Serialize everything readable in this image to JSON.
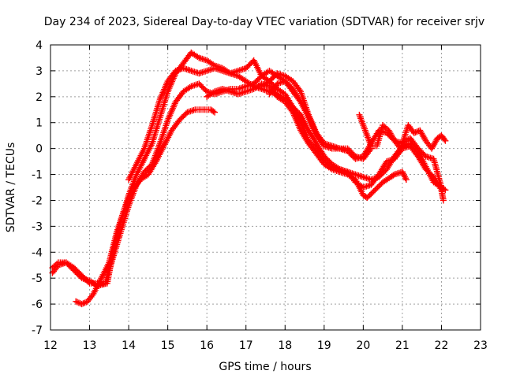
{
  "chart_data": {
    "type": "scatter",
    "title": "Day 234 of 2023, Sidereal Day-to-day VTEC variation (SDTVAR) for receiver srjv",
    "xlabel": "GPS time / hours",
    "ylabel": "SDTVAR / TECUs",
    "xlim": [
      12,
      23
    ],
    "ylim": [
      -7,
      4
    ],
    "xticks": [
      12,
      13,
      14,
      15,
      16,
      17,
      18,
      19,
      20,
      21,
      22,
      23
    ],
    "yticks": [
      -7,
      -6,
      -5,
      -4,
      -3,
      -2,
      -1,
      0,
      1,
      2,
      3,
      4
    ],
    "grid": true,
    "marker": "+",
    "series": [
      {
        "name": "track-a",
        "color": "#ff0000",
        "points": [
          [
            12.05,
            -4.8
          ],
          [
            12.2,
            -4.5
          ],
          [
            12.4,
            -4.4
          ],
          [
            12.6,
            -4.6
          ],
          [
            12.8,
            -4.9
          ],
          [
            13.0,
            -5.2
          ],
          [
            13.2,
            -5.2
          ],
          [
            13.4,
            -5.2
          ],
          [
            13.6,
            -4.2
          ],
          [
            13.8,
            -3.2
          ],
          [
            14.0,
            -2.2
          ],
          [
            14.2,
            -1.4
          ],
          [
            14.4,
            -0.9
          ],
          [
            14.6,
            -0.6
          ],
          [
            14.8,
            0.2
          ],
          [
            15.0,
            1.1
          ],
          [
            15.2,
            1.8
          ],
          [
            15.4,
            2.2
          ],
          [
            15.6,
            2.4
          ],
          [
            15.8,
            2.5
          ],
          [
            16.0,
            2.2
          ],
          [
            16.2,
            2.1
          ],
          [
            16.4,
            2.2
          ],
          [
            16.6,
            2.3
          ],
          [
            16.8,
            2.3
          ],
          [
            17.0,
            2.4
          ],
          [
            17.2,
            2.5
          ],
          [
            17.4,
            2.8
          ],
          [
            17.6,
            3.0
          ],
          [
            17.8,
            2.8
          ],
          [
            18.0,
            2.6
          ],
          [
            18.2,
            2.2
          ],
          [
            18.4,
            1.8
          ],
          [
            18.6,
            1.2
          ],
          [
            18.8,
            0.6
          ],
          [
            19.0,
            0.2
          ],
          [
            19.2,
            0.1
          ],
          [
            19.4,
            0.0
          ],
          [
            19.6,
            0.0
          ],
          [
            19.8,
            -0.3
          ],
          [
            20.0,
            -0.4
          ],
          [
            20.2,
            0.0
          ]
        ]
      },
      {
        "name": "track-b",
        "color": "#ff0000",
        "points": [
          [
            12.05,
            -4.6
          ],
          [
            12.2,
            -4.4
          ],
          [
            12.4,
            -4.4
          ],
          [
            12.6,
            -4.7
          ],
          [
            12.8,
            -5.0
          ],
          [
            13.0,
            -5.1
          ],
          [
            13.2,
            -5.3
          ],
          [
            13.45,
            -5.2
          ],
          [
            13.6,
            -4.0
          ],
          [
            13.8,
            -2.8
          ],
          [
            14.0,
            -1.8
          ],
          [
            14.2,
            -1.0
          ],
          [
            14.4,
            -0.4
          ],
          [
            14.6,
            0.2
          ],
          [
            14.8,
            1.2
          ],
          [
            15.0,
            2.2
          ],
          [
            15.2,
            2.9
          ],
          [
            15.4,
            3.3
          ],
          [
            15.6,
            3.7
          ],
          [
            15.8,
            3.5
          ],
          [
            16.0,
            3.4
          ],
          [
            16.2,
            3.2
          ],
          [
            16.4,
            3.1
          ],
          [
            16.6,
            2.9
          ],
          [
            16.8,
            2.8
          ],
          [
            17.0,
            2.6
          ],
          [
            17.2,
            2.4
          ],
          [
            17.4,
            2.3
          ],
          [
            17.6,
            2.2
          ],
          [
            17.8,
            2.1
          ],
          [
            18.0,
            1.9
          ],
          [
            18.2,
            1.6
          ],
          [
            18.4,
            1.3
          ],
          [
            18.6,
            0.7
          ],
          [
            18.8,
            0.2
          ],
          [
            19.0,
            -0.3
          ],
          [
            19.2,
            -0.6
          ],
          [
            19.4,
            -0.8
          ],
          [
            19.6,
            -0.9
          ],
          [
            19.8,
            -1.0
          ],
          [
            20.0,
            -1.1
          ],
          [
            20.2,
            -1.2
          ],
          [
            20.4,
            -1.1
          ],
          [
            20.6,
            -0.8
          ],
          [
            20.8,
            -0.3
          ],
          [
            21.0,
            0.1
          ],
          [
            21.2,
            0.2
          ],
          [
            21.4,
            -0.1
          ],
          [
            21.6,
            -0.7
          ],
          [
            21.8,
            -1.3
          ],
          [
            22.0,
            -1.5
          ],
          [
            22.1,
            -1.6
          ]
        ]
      },
      {
        "name": "track-c",
        "color": "#ff0000",
        "points": [
          [
            12.65,
            -5.9
          ],
          [
            12.8,
            -6.0
          ],
          [
            12.95,
            -5.9
          ],
          [
            13.1,
            -5.6
          ],
          [
            13.3,
            -5.0
          ],
          [
            13.5,
            -4.4
          ],
          [
            13.7,
            -3.2
          ],
          [
            13.9,
            -2.3
          ],
          [
            14.1,
            -1.6
          ],
          [
            14.3,
            -1.2
          ],
          [
            14.5,
            -1.0
          ],
          [
            14.7,
            -0.5
          ],
          [
            14.9,
            0.1
          ],
          [
            15.1,
            0.7
          ],
          [
            15.3,
            1.1
          ],
          [
            15.5,
            1.4
          ],
          [
            15.7,
            1.5
          ],
          [
            15.9,
            1.5
          ],
          [
            16.1,
            1.5
          ],
          [
            16.2,
            1.4
          ]
        ]
      },
      {
        "name": "track-d",
        "color": "#ff0000",
        "points": [
          [
            14.0,
            -1.2
          ],
          [
            14.2,
            -0.6
          ],
          [
            14.4,
            0.0
          ],
          [
            14.6,
            0.9
          ],
          [
            14.8,
            1.9
          ],
          [
            15.0,
            2.6
          ],
          [
            15.2,
            3.0
          ],
          [
            15.4,
            3.1
          ],
          [
            15.6,
            3.0
          ],
          [
            15.8,
            2.9
          ],
          [
            16.0,
            3.0
          ],
          [
            16.2,
            3.1
          ],
          [
            16.4,
            3.0
          ],
          [
            16.6,
            2.9
          ],
          [
            16.8,
            3.0
          ],
          [
            17.0,
            3.1
          ],
          [
            17.2,
            3.4
          ],
          [
            17.4,
            2.8
          ],
          [
            17.6,
            2.6
          ],
          [
            17.8,
            2.3
          ],
          [
            18.0,
            2.1
          ],
          [
            18.2,
            1.6
          ],
          [
            18.4,
            1.0
          ],
          [
            18.6,
            0.3
          ],
          [
            18.8,
            0.0
          ],
          [
            19.0,
            -0.4
          ],
          [
            19.2,
            -0.7
          ],
          [
            19.4,
            -0.8
          ],
          [
            19.6,
            -0.9
          ],
          [
            19.8,
            -1.3
          ],
          [
            20.0,
            -1.5
          ],
          [
            20.2,
            -1.4
          ],
          [
            20.4,
            -1.0
          ],
          [
            20.6,
            -0.5
          ],
          [
            20.8,
            -0.4
          ],
          [
            21.0,
            0.0
          ],
          [
            21.2,
            0.1
          ],
          [
            21.4,
            -0.3
          ],
          [
            21.6,
            -0.8
          ],
          [
            21.8,
            -1.1
          ],
          [
            22.0,
            -1.6
          ],
          [
            22.05,
            -2.0
          ]
        ]
      },
      {
        "name": "track-e",
        "color": "#ff0000",
        "points": [
          [
            16.0,
            2.0
          ],
          [
            16.2,
            2.2
          ],
          [
            16.4,
            2.3
          ],
          [
            16.6,
            2.2
          ],
          [
            16.8,
            2.1
          ],
          [
            17.0,
            2.2
          ],
          [
            17.2,
            2.3
          ],
          [
            17.4,
            2.5
          ],
          [
            17.6,
            2.4
          ],
          [
            17.8,
            2.0
          ],
          [
            18.0,
            1.8
          ],
          [
            18.2,
            1.4
          ],
          [
            18.4,
            0.7
          ],
          [
            18.6,
            0.2
          ],
          [
            18.8,
            -0.2
          ],
          [
            19.0,
            -0.6
          ],
          [
            19.2,
            -0.8
          ],
          [
            19.4,
            -0.9
          ],
          [
            19.6,
            -1.0
          ],
          [
            19.8,
            -1.2
          ],
          [
            20.0,
            -1.8
          ],
          [
            20.1,
            -1.9
          ],
          [
            20.3,
            -1.6
          ],
          [
            20.5,
            -1.3
          ],
          [
            20.7,
            -1.1
          ],
          [
            20.8,
            -1.0
          ],
          [
            21.0,
            -0.9
          ],
          [
            21.1,
            -1.2
          ]
        ]
      },
      {
        "name": "track-f",
        "color": "#ff0000",
        "points": [
          [
            17.6,
            2.1
          ],
          [
            17.8,
            2.5
          ],
          [
            18.0,
            2.6
          ],
          [
            18.2,
            2.3
          ],
          [
            18.4,
            1.8
          ],
          [
            18.6,
            1.3
          ],
          [
            18.8,
            0.5
          ],
          [
            19.0,
            0.1
          ],
          [
            19.2,
            0.0
          ],
          [
            19.4,
            0.0
          ],
          [
            19.6,
            -0.1
          ],
          [
            19.8,
            -0.4
          ],
          [
            20.0,
            -0.3
          ],
          [
            20.2,
            0.2
          ],
          [
            20.4,
            0.7
          ],
          [
            20.6,
            0.6
          ],
          [
            20.8,
            0.3
          ],
          [
            21.0,
            0.2
          ],
          [
            21.2,
            0.4
          ],
          [
            21.4,
            0.0
          ],
          [
            21.6,
            -0.3
          ],
          [
            21.8,
            -0.4
          ],
          [
            22.0,
            -1.5
          ]
        ]
      },
      {
        "name": "track-g",
        "color": "#ff0000",
        "points": [
          [
            17.4,
            2.4
          ],
          [
            17.6,
            2.6
          ],
          [
            17.8,
            2.9
          ],
          [
            18.0,
            2.8
          ],
          [
            18.2,
            2.6
          ],
          [
            18.4,
            2.2
          ],
          [
            18.6,
            1.3
          ],
          [
            18.8,
            0.6
          ],
          [
            19.0,
            0.1
          ]
        ]
      },
      {
        "name": "track-h",
        "color": "#ff0000",
        "points": [
          [
            19.9,
            1.3
          ],
          [
            20.0,
            0.9
          ],
          [
            20.1,
            0.5
          ],
          [
            20.2,
            0.1
          ],
          [
            20.35,
            0.1
          ],
          [
            20.5,
            0.9
          ],
          [
            20.65,
            0.7
          ],
          [
            20.8,
            0.3
          ],
          [
            20.95,
            0.0
          ],
          [
            21.0,
            0.2
          ],
          [
            21.15,
            0.9
          ],
          [
            21.3,
            0.6
          ],
          [
            21.45,
            0.7
          ],
          [
            21.6,
            0.3
          ],
          [
            21.75,
            0.0
          ],
          [
            21.9,
            0.4
          ],
          [
            22.0,
            0.5
          ],
          [
            22.1,
            0.3
          ]
        ]
      }
    ]
  }
}
